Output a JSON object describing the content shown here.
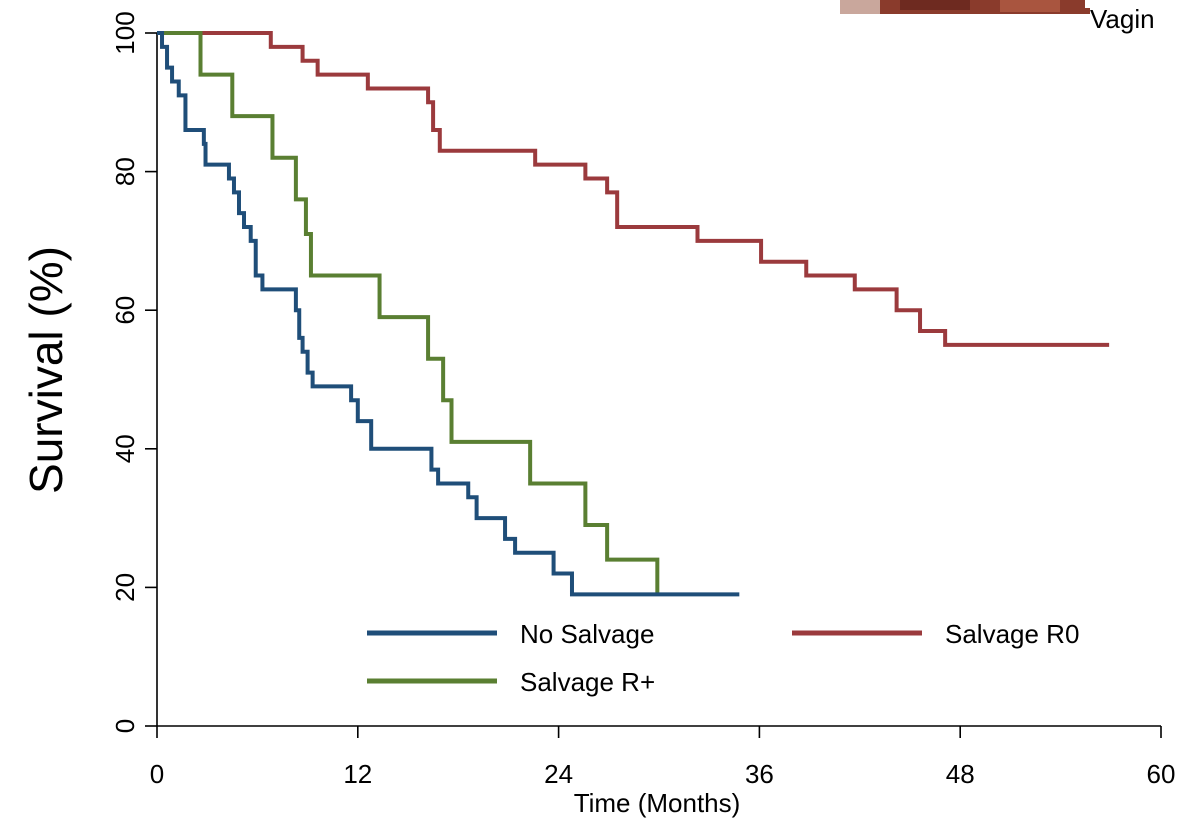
{
  "chart_data": {
    "type": "line",
    "xlabel": "Time (Months)",
    "ylabel": "Survival (%)",
    "xlim": [
      0,
      60
    ],
    "ylim": [
      0,
      100
    ],
    "xticks": [
      0,
      12,
      24,
      36,
      48,
      60
    ],
    "yticks": [
      0,
      20,
      40,
      60,
      80,
      100
    ],
    "grid": false,
    "legend_placement": "bottom-center",
    "step": true,
    "series": [
      {
        "name": "No Salvage",
        "color": "#1f4e79",
        "x": [
          0,
          0.3,
          0.6,
          0.9,
          1.3,
          1.7,
          2.8,
          2.9,
          4.3,
          4.6,
          4.9,
          5.2,
          5.6,
          5.9,
          6.3,
          8.3,
          8.5,
          8.7,
          9.0,
          9.3,
          10.0,
          11.6,
          12.0,
          12.8,
          16.4,
          16.8,
          18.6,
          19.1,
          20.8,
          21.4,
          23.7,
          24.8,
          34.8
        ],
        "y": [
          100,
          98,
          95,
          93,
          91,
          86,
          84,
          81,
          79,
          77,
          74,
          72,
          70,
          65,
          63,
          60,
          56,
          54,
          51,
          49,
          49,
          47,
          44,
          40,
          37,
          35,
          33,
          30,
          27,
          25,
          22,
          19,
          19
        ]
      },
      {
        "name": "Salvage R0",
        "color": "#9b3a3d",
        "x": [
          0,
          6.8,
          8.7,
          9.6,
          12.6,
          16.2,
          16.5,
          16.9,
          22.6,
          25.6,
          26.9,
          27.5,
          32.3,
          36.1,
          38.8,
          41.7,
          44.2,
          45.6,
          47.1,
          48.0,
          56.9
        ],
        "y": [
          100,
          98,
          96,
          94,
          92,
          90,
          86,
          83,
          81,
          79,
          77,
          72,
          70,
          67,
          65,
          63,
          60,
          57,
          55,
          55,
          55
        ]
      },
      {
        "name": "Salvage R+",
        "color": "#5a7f32",
        "x": [
          0,
          2.6,
          4.5,
          6.9,
          8.3,
          8.9,
          9.2,
          13.3,
          16.2,
          17.1,
          17.6,
          22.3,
          25.6,
          26.9,
          29.9
        ],
        "y": [
          100,
          94,
          88,
          82,
          76,
          71,
          65,
          59,
          53,
          47,
          41,
          35,
          29,
          24,
          19
        ]
      }
    ]
  },
  "corner_text": "Vagin"
}
